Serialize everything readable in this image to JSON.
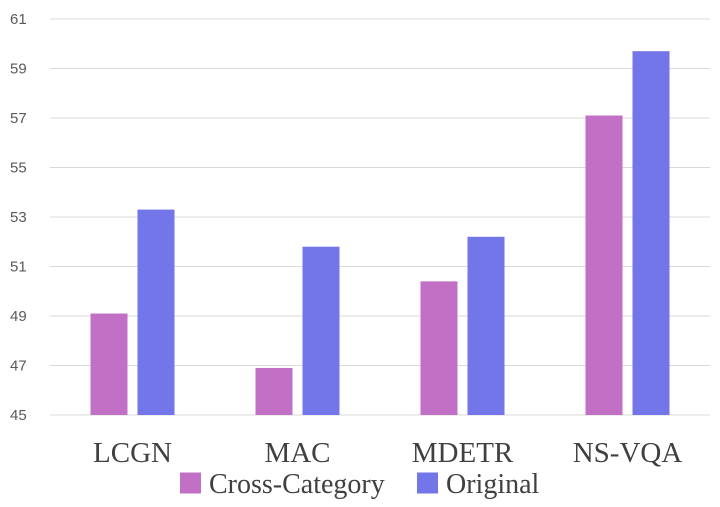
{
  "chart_data": {
    "type": "bar",
    "categories": [
      "LCGN",
      "MAC",
      "MDETR",
      "NS-VQA"
    ],
    "series": [
      {
        "name": "Cross-Category",
        "values": [
          49.1,
          46.9,
          50.4,
          57.1
        ],
        "color": "#c26fc6"
      },
      {
        "name": "Original",
        "values": [
          53.3,
          51.8,
          52.2,
          59.7
        ],
        "color": "#7376e8"
      }
    ],
    "ylim": [
      45,
      61
    ],
    "yticks": [
      45,
      47,
      49,
      51,
      53,
      55,
      57,
      59,
      61
    ],
    "grid": true,
    "legend_position": "bottom"
  }
}
